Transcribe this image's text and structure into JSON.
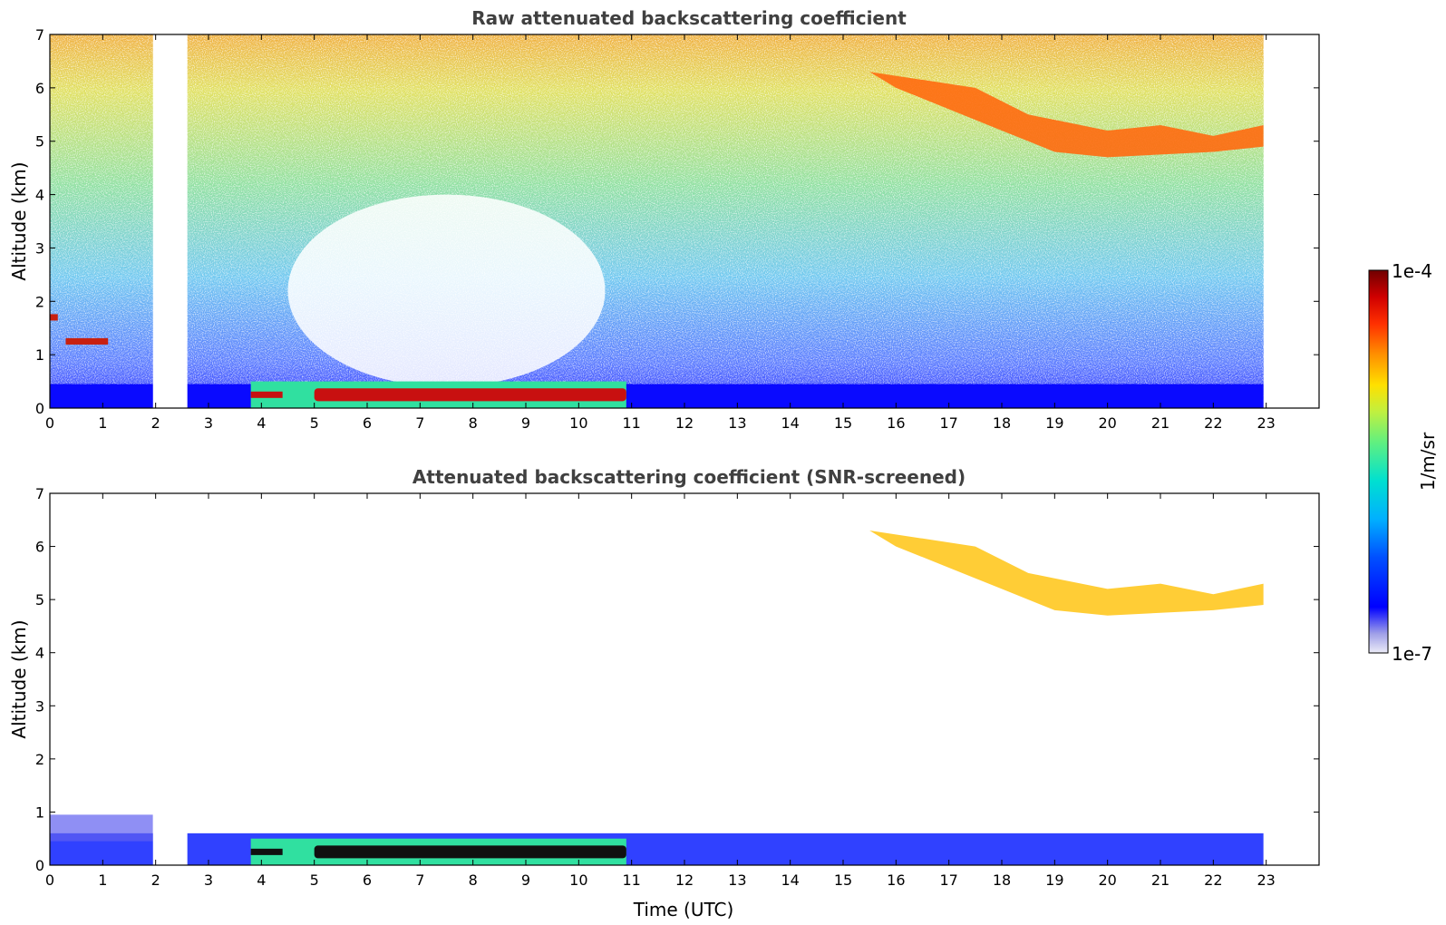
{
  "chart_data": [
    {
      "type": "heatmap",
      "title": "Raw attenuated backscattering coefficient",
      "xlabel": "",
      "ylabel": "Altitude (km)",
      "xlim": [
        0,
        24
      ],
      "ylim": [
        0,
        7
      ],
      "xticks": [
        "0",
        "1",
        "2",
        "3",
        "4",
        "5",
        "6",
        "7",
        "8",
        "9",
        "10",
        "11",
        "12",
        "13",
        "14",
        "15",
        "16",
        "17",
        "18",
        "19",
        "20",
        "21",
        "22",
        "23"
      ],
      "yticks": [
        "0",
        "1",
        "2",
        "3",
        "4",
        "5",
        "6",
        "7"
      ],
      "data_gap_hours": [
        [
          1.95,
          2.6
        ],
        [
          22.95,
          24
        ]
      ],
      "features": [
        {
          "kind": "boundary_layer",
          "x_range": [
            0,
            22.95
          ],
          "y_top": 0.45
        },
        {
          "kind": "fog_layer",
          "x_range": [
            3.8,
            10.9
          ],
          "y": 0.25
        },
        {
          "kind": "cirrus",
          "x_range": [
            15.5,
            22.95
          ],
          "y_range": [
            4.7,
            6.3
          ]
        },
        {
          "kind": "cloud",
          "x_range": [
            0.3,
            1.1
          ],
          "y": 1.25
        },
        {
          "kind": "cloud",
          "x_range": [
            0,
            0.15
          ],
          "y": 1.7
        }
      ]
    },
    {
      "type": "heatmap",
      "title": "Attenuated backscattering coefficient (SNR-screened)",
      "xlabel": "Time (UTC)",
      "ylabel": "Altitude (km)",
      "xlim": [
        0,
        24
      ],
      "ylim": [
        0,
        7
      ],
      "xticks": [
        "0",
        "1",
        "2",
        "3",
        "4",
        "5",
        "6",
        "7",
        "8",
        "9",
        "10",
        "11",
        "12",
        "13",
        "14",
        "15",
        "16",
        "17",
        "18",
        "19",
        "20",
        "21",
        "22",
        "23"
      ],
      "yticks": [
        "0",
        "1",
        "2",
        "3",
        "4",
        "5",
        "6",
        "7"
      ],
      "data_gap_hours": [
        [
          1.95,
          2.6
        ],
        [
          22.95,
          24
        ]
      ],
      "features": [
        {
          "kind": "boundary_layer",
          "x_range": [
            0,
            22.95
          ],
          "y_top": 0.6
        },
        {
          "kind": "fog_layer",
          "x_range": [
            3.8,
            10.9
          ],
          "y": 0.25
        },
        {
          "kind": "cirrus",
          "x_range": [
            15.5,
            22.95
          ],
          "y_range": [
            4.7,
            6.3
          ]
        }
      ]
    }
  ],
  "colorbar": {
    "max_label": "1e-4",
    "min_label": "1e-7",
    "unit_label": "1/m/sr",
    "scale": "log",
    "colormap": [
      "#e6e6f5",
      "#9999e6",
      "#0000ff",
      "#0055ff",
      "#00aaff",
      "#00e0e0",
      "#40f0a0",
      "#a0f040",
      "#f0f000",
      "#ffc000",
      "#ff7000",
      "#ff2000",
      "#c00000",
      "#700000"
    ]
  }
}
